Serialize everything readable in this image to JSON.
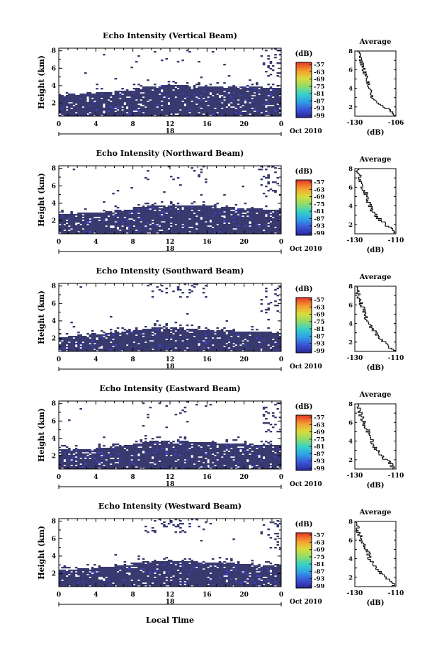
{
  "chart_data": [
    {
      "type": "heatmap",
      "title": "Echo Intensity (Vertical Beam)",
      "xlabel": "",
      "ylabel": "Height (km)",
      "date_label": "Oct 2010",
      "x_ticks": [
        "0",
        "4",
        "8",
        "12",
        "16",
        "20",
        "0"
      ],
      "x_range": [
        0,
        24
      ],
      "day_label": "18",
      "y_ticks": [
        "2",
        "4",
        "6",
        "8"
      ],
      "y_range": [
        0.5,
        8.3
      ],
      "echo_layer_top_km": [
        3.0,
        3.0,
        3.1,
        3.1,
        3.2,
        3.3,
        3.4,
        3.5,
        3.8,
        3.9,
        3.9,
        4.0,
        4.0,
        4.0,
        3.9,
        3.9,
        3.9,
        3.9,
        3.9,
        3.9,
        3.9,
        3.9,
        3.8,
        3.8
      ],
      "colorbar": {
        "unit": "(dB)",
        "ticks": [
          "-57",
          "-63",
          "-69",
          "-75",
          "-81",
          "-87",
          "-93",
          "-99"
        ]
      },
      "avg_profile": {
        "title": "Average",
        "xlabel": "(dB)",
        "x_ticks": [
          "-130",
          "-106"
        ],
        "x_range": [
          -130,
          -106
        ],
        "y_ticks": [
          "2",
          "4",
          "6",
          "8"
        ],
        "values": [
          -107,
          -110,
          -116,
          -120,
          -121,
          -122,
          -123,
          -124,
          -125,
          -126,
          -127,
          -128
        ]
      }
    },
    {
      "type": "heatmap",
      "title": "Echo Intensity (Northward Beam)",
      "xlabel": "",
      "ylabel": "Height (km)",
      "date_label": "Oct 2010",
      "x_ticks": [
        "0",
        "4",
        "8",
        "12",
        "16",
        "20",
        "0"
      ],
      "x_range": [
        0,
        24
      ],
      "day_label": "18",
      "y_ticks": [
        "2",
        "4",
        "6",
        "8"
      ],
      "y_range": [
        0.5,
        8.3
      ],
      "echo_layer_top_km": [
        2.8,
        2.8,
        2.9,
        2.9,
        3.0,
        3.1,
        3.2,
        3.3,
        3.6,
        3.7,
        3.7,
        3.8,
        3.8,
        3.8,
        3.7,
        3.7,
        3.7,
        3.6,
        3.6,
        3.5,
        3.5,
        3.4,
        3.3,
        3.3
      ],
      "colorbar": {
        "unit": "(dB)",
        "ticks": [
          "-57",
          "-63",
          "-69",
          "-75",
          "-81",
          "-87",
          "-93",
          "-99"
        ]
      },
      "avg_profile": {
        "title": "Average",
        "xlabel": "(dB)",
        "x_ticks": [
          "-130",
          "-110"
        ],
        "x_range": [
          -130,
          -110
        ],
        "y_ticks": [
          "2",
          "4",
          "6",
          "8"
        ],
        "values": [
          -111,
          -113,
          -117,
          -120,
          -122,
          -123,
          -124,
          -125,
          -127,
          -128,
          -128,
          -129
        ]
      }
    },
    {
      "type": "heatmap",
      "title": "Echo Intensity (Southward Beam)",
      "xlabel": "",
      "ylabel": "Height (km)",
      "date_label": "Oct 2010",
      "x_ticks": [
        "0",
        "4",
        "8",
        "12",
        "16",
        "20",
        "0"
      ],
      "x_range": [
        0,
        24
      ],
      "day_label": "18",
      "y_ticks": [
        "2",
        "4",
        "6",
        "8"
      ],
      "y_range": [
        0.5,
        8.3
      ],
      "echo_layer_top_km": [
        2.2,
        2.3,
        2.3,
        2.4,
        2.5,
        2.6,
        2.7,
        2.8,
        3.0,
        3.1,
        3.2,
        3.2,
        3.2,
        3.1,
        3.1,
        3.0,
        3.0,
        3.0,
        2.9,
        2.8,
        2.8,
        2.7,
        2.7,
        2.6
      ],
      "colorbar": {
        "unit": "(dB)",
        "ticks": [
          "-57",
          "-63",
          "-69",
          "-75",
          "-81",
          "-87",
          "-93",
          "-99"
        ]
      },
      "avg_profile": {
        "title": "Average",
        "xlabel": "(dB)",
        "x_ticks": [
          "-130",
          "-110"
        ],
        "x_range": [
          -130,
          -110
        ],
        "y_ticks": [
          "2",
          "4",
          "6",
          "8"
        ],
        "values": [
          -111,
          -114,
          -118,
          -120,
          -122,
          -124,
          -125,
          -126,
          -127,
          -128,
          -129,
          -129
        ]
      }
    },
    {
      "type": "heatmap",
      "title": "Echo Intensity (Eastward Beam)",
      "xlabel": "",
      "ylabel": "Height (km)",
      "date_label": "Oct 2010",
      "x_ticks": [
        "0",
        "4",
        "8",
        "12",
        "16",
        "20",
        "0"
      ],
      "x_range": [
        0,
        24
      ],
      "day_label": "18",
      "y_ticks": [
        "2",
        "4",
        "6",
        "8"
      ],
      "y_range": [
        0.5,
        8.3
      ],
      "echo_layer_top_km": [
        2.7,
        2.7,
        2.8,
        2.8,
        2.9,
        3.0,
        3.1,
        3.2,
        3.5,
        3.6,
        3.7,
        3.7,
        3.7,
        3.7,
        3.6,
        3.6,
        3.6,
        3.5,
        3.5,
        3.4,
        3.4,
        3.3,
        3.3,
        3.2
      ],
      "colorbar": {
        "unit": "(dB)",
        "ticks": [
          "-57",
          "-63",
          "-69",
          "-75",
          "-81",
          "-87",
          "-93",
          "-99"
        ]
      },
      "avg_profile": {
        "title": "Average",
        "xlabel": "(dB)",
        "x_ticks": [
          "-130",
          "-110"
        ],
        "x_range": [
          -130,
          -110
        ],
        "y_ticks": [
          "2",
          "4",
          "6",
          "8"
        ],
        "values": [
          -111,
          -113,
          -117,
          -119,
          -121,
          -122,
          -123,
          -125,
          -126,
          -127,
          -128,
          -128
        ]
      }
    },
    {
      "type": "heatmap",
      "title": "Echo Intensity (Westward Beam)",
      "xlabel": "Local Time",
      "ylabel": "Height (km)",
      "date_label": "Oct 2010",
      "x_ticks": [
        "0",
        "4",
        "8",
        "12",
        "16",
        "20",
        "0"
      ],
      "x_range": [
        0,
        24
      ],
      "day_label": "18",
      "y_ticks": [
        "2",
        "4",
        "6",
        "8"
      ],
      "y_range": [
        0.5,
        8.3
      ],
      "echo_layer_top_km": [
        2.5,
        2.5,
        2.6,
        2.6,
        2.7,
        2.8,
        2.9,
        3.0,
        3.3,
        3.4,
        3.5,
        3.5,
        3.5,
        3.4,
        3.4,
        3.3,
        3.3,
        3.2,
        3.2,
        3.1,
        3.1,
        3.0,
        3.0,
        2.9
      ],
      "colorbar": {
        "unit": "(dB)",
        "ticks": [
          "-57",
          "-63",
          "-69",
          "-75",
          "-81",
          "-87",
          "-93",
          "-99"
        ]
      },
      "avg_profile": {
        "title": "Average",
        "xlabel": "(dB)",
        "x_ticks": [
          "-130",
          "-110"
        ],
        "x_range": [
          -130,
          -110
        ],
        "y_ticks": [
          "2",
          "4",
          "6",
          "8"
        ],
        "values": [
          -111,
          -113,
          -117,
          -120,
          -122,
          -123,
          -124,
          -126,
          -127,
          -128,
          -129,
          -129
        ]
      }
    }
  ],
  "colors": {
    "echo": "#38396e",
    "echo_speckle": "#3a43c8",
    "colorbar_scale": [
      "#2a2a9a",
      "#3b55d8",
      "#2fa0e6",
      "#37d0c8",
      "#8fdc6a",
      "#d8dc3c",
      "#f5a030",
      "#e8402a"
    ]
  }
}
